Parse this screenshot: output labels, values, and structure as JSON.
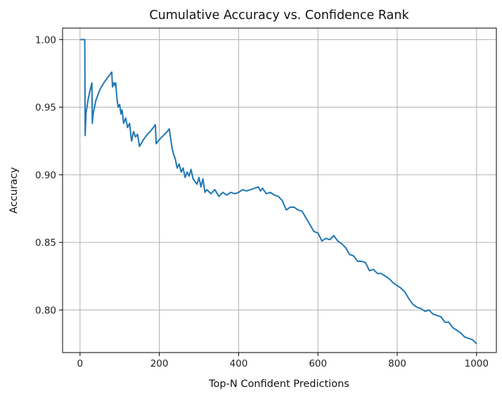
{
  "chart_data": {
    "type": "line",
    "title": "Cumulative Accuracy vs. Confidence Rank",
    "xlabel": "Top-N Confident Predictions",
    "ylabel": "Accuracy",
    "xlim": [
      -44,
      1050
    ],
    "ylim": [
      0.7685,
      1.0085
    ],
    "x_ticks": [
      0,
      200,
      400,
      600,
      800,
      1000
    ],
    "x_tick_labels": [
      "0",
      "200",
      "400",
      "600",
      "800",
      "1000"
    ],
    "y_ticks": [
      0.8,
      0.85,
      0.9,
      0.95,
      1.0
    ],
    "y_tick_labels": [
      "0.80",
      "0.85",
      "0.90",
      "0.95",
      "1.00"
    ],
    "grid": true,
    "series": [
      {
        "name": "",
        "color": "#1f77b4",
        "x": [
          1,
          12,
          13,
          15,
          20,
          25,
          30,
          31,
          33,
          40,
          50,
          60,
          70,
          80,
          82,
          85,
          88,
          90,
          93,
          96,
          100,
          103,
          106,
          110,
          115,
          120,
          125,
          130,
          135,
          140,
          145,
          150,
          160,
          170,
          180,
          190,
          192,
          200,
          210,
          220,
          225,
          228,
          232,
          236,
          240,
          245,
          250,
          255,
          260,
          265,
          270,
          275,
          280,
          285,
          290,
          295,
          300,
          305,
          310,
          315,
          320,
          330,
          340,
          350,
          360,
          370,
          380,
          390,
          400,
          410,
          420,
          430,
          440,
          450,
          455,
          460,
          470,
          480,
          490,
          500,
          510,
          520,
          530,
          540,
          550,
          560,
          570,
          580,
          590,
          600,
          610,
          620,
          630,
          640,
          650,
          660,
          670,
          680,
          690,
          700,
          710,
          720,
          730,
          740,
          750,
          760,
          770,
          780,
          790,
          800,
          810,
          820,
          830,
          840,
          850,
          860,
          870,
          880,
          890,
          900,
          910,
          920,
          930,
          940,
          950,
          960,
          970,
          980,
          990,
          1000
        ],
        "y": [
          1.0,
          1.0,
          0.929,
          0.945,
          0.955,
          0.962,
          0.968,
          0.938,
          0.945,
          0.955,
          0.963,
          0.968,
          0.972,
          0.976,
          0.965,
          0.968,
          0.966,
          0.968,
          0.957,
          0.95,
          0.952,
          0.945,
          0.948,
          0.938,
          0.942,
          0.935,
          0.938,
          0.925,
          0.932,
          0.928,
          0.93,
          0.921,
          0.926,
          0.93,
          0.933,
          0.937,
          0.923,
          0.926,
          0.929,
          0.932,
          0.934,
          0.928,
          0.92,
          0.915,
          0.912,
          0.905,
          0.908,
          0.902,
          0.905,
          0.898,
          0.902,
          0.899,
          0.904,
          0.897,
          0.895,
          0.893,
          0.898,
          0.891,
          0.897,
          0.887,
          0.889,
          0.886,
          0.889,
          0.884,
          0.887,
          0.885,
          0.887,
          0.886,
          0.887,
          0.889,
          0.888,
          0.889,
          0.89,
          0.891,
          0.888,
          0.89,
          0.886,
          0.887,
          0.885,
          0.884,
          0.881,
          0.874,
          0.876,
          0.876,
          0.874,
          0.873,
          0.868,
          0.863,
          0.858,
          0.857,
          0.851,
          0.853,
          0.852,
          0.855,
          0.851,
          0.849,
          0.846,
          0.841,
          0.84,
          0.836,
          0.836,
          0.835,
          0.829,
          0.83,
          0.827,
          0.827,
          0.825,
          0.823,
          0.82,
          0.818,
          0.816,
          0.813,
          0.808,
          0.804,
          0.802,
          0.801,
          0.799,
          0.8,
          0.797,
          0.796,
          0.795,
          0.791,
          0.791,
          0.787,
          0.785,
          0.783,
          0.78,
          0.779,
          0.778,
          0.775
        ]
      }
    ]
  }
}
